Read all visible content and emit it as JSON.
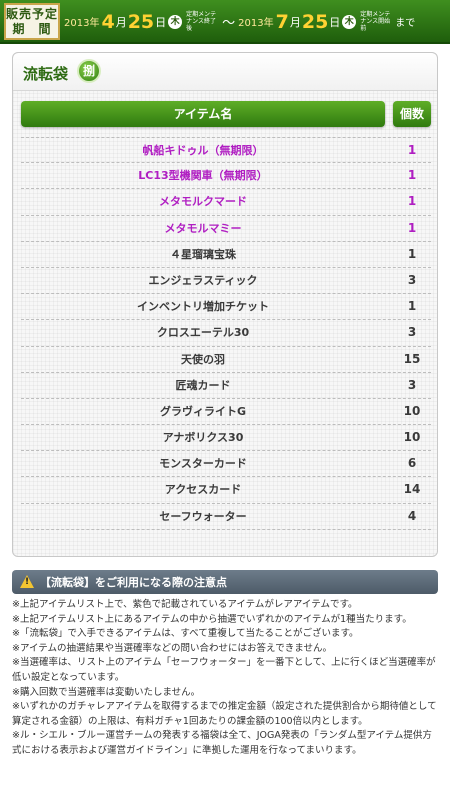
{
  "banner": {
    "label": "販売予定期　間",
    "start": {
      "year": "2013年",
      "month": "4",
      "month_unit": "月",
      "day": "25",
      "day_unit": "日",
      "weekday": "木",
      "maint": "定期メンテナンス終了後"
    },
    "tilde": "～",
    "end": {
      "year": "2013年",
      "month": "7",
      "month_unit": "月",
      "day": "25",
      "day_unit": "日",
      "weekday": "木",
      "maint": "定期メンテナンス開始前"
    },
    "until": "まで"
  },
  "panel": {
    "title": "流転袋",
    "badge": "捌",
    "header_name": "アイテム名",
    "header_count": "個数",
    "items": [
      {
        "name": "帆船キドゥル（無期限）",
        "count": "1",
        "rare": true
      },
      {
        "name": "LC13型機関車（無期限）",
        "count": "1",
        "rare": true
      },
      {
        "name": "メタモルクマード",
        "count": "1",
        "rare": true
      },
      {
        "name": "メタモルマミー",
        "count": "1",
        "rare": true
      },
      {
        "name": "４星瑠璃宝珠",
        "count": "1",
        "rare": false
      },
      {
        "name": "エンジェラスティック",
        "count": "3",
        "rare": false
      },
      {
        "name": "インベントリ増加チケット",
        "count": "1",
        "rare": false
      },
      {
        "name": "クロスエーテル30",
        "count": "3",
        "rare": false
      },
      {
        "name": "天使の羽",
        "count": "15",
        "rare": false
      },
      {
        "name": "匠魂カード",
        "count": "3",
        "rare": false
      },
      {
        "name": "グラヴィライトG",
        "count": "10",
        "rare": false
      },
      {
        "name": "アナボリクス30",
        "count": "10",
        "rare": false
      },
      {
        "name": "モンスターカード",
        "count": "6",
        "rare": false
      },
      {
        "name": "アクセスカード",
        "count": "14",
        "rare": false
      },
      {
        "name": "セーフウォーター",
        "count": "4",
        "rare": false
      }
    ]
  },
  "notes": {
    "title": "【流転袋】をご利用になる際の注意点",
    "lines": [
      "※上記アイテムリスト上で、紫色で記載されているアイテムがレアアイテムです。",
      "※上記アイテムリスト上にあるアイテムの中から抽選でいずれかのアイテムが1種当たります。",
      "※「流転袋」で入手できるアイテムは、すべて重複して当たることがございます。",
      "※アイテムの抽選結果や当選確率などの問い合わせにはお答えできません。",
      "※当選確率は、リスト上のアイテム「セーフウォーター」を一番下として、上に行くほど当選確率が低い設定となっています。",
      "※購入回数で当選確率は変動いたしません。",
      "※いずれかのガチャレアアイテムを取得するまでの推定金額（設定された提供割合から期待値として算定される金額）の上限は、有料ガチャ1回あたりの課金額の100倍以内とします。",
      "※ル・シエル・ブルー運営チームの発表する福袋は全て、JOGA発表の「ランダム型アイテム提供方式における表示および運営ガイドライン」に準拠した運用を行なってまいります。"
    ]
  },
  "colors": {
    "rare": "#b01ec2",
    "normal": "#3a3a3a",
    "accent": "#2f7a0f"
  }
}
